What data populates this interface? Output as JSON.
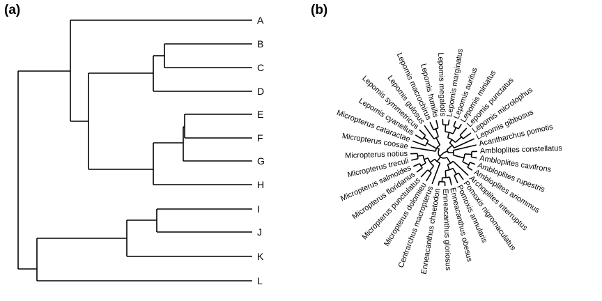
{
  "panel_a": {
    "label": "(a)",
    "tips": [
      "A",
      "B",
      "C",
      "D",
      "E",
      "F",
      "G",
      "H",
      "I",
      "J",
      "K",
      "L"
    ]
  },
  "panel_b": {
    "label": "(b)",
    "species": [
      "Lepomis megalotis",
      "Lepomis marginatus",
      "Lepomis auritus",
      "Lepomis miniatus",
      "Lepomis punctatus",
      "Lepomis microlophus",
      "Lepomis gibbosus",
      "Acantharchus pomotis",
      "Ambloplites constellatus",
      "Ambloplites cavifrons",
      "Ambloplites rupestris",
      "Ambloplites ariommus",
      "Archoplites interruptus",
      "Pomoxis nigromaculatus",
      "Pomoxis annularis",
      "Enneacanthus obesus",
      "Enneacanthus gloriosus",
      "Enneacanthus chaetodon",
      "Centrarchus macropterus",
      "Micropterus dolomieu",
      "Micropterus punctulatus",
      "Micropterus floridanus",
      "Micropterus salmoides",
      "Micropterus treculi",
      "Micropterus notius",
      "Micropterus coosae",
      "Micropterus cataractae",
      "Lepomis cyanellus",
      "Lepomis symmetricus",
      "Lepomis gulosus",
      "Lepomis macrochirus",
      "Lepomis humilis"
    ]
  }
}
